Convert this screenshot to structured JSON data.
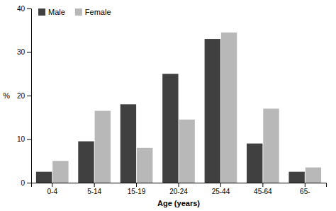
{
  "chart_data": {
    "type": "bar",
    "categories": [
      "0-4",
      "5-14",
      "15-19",
      "20-24",
      "25-44",
      "45-64",
      "65-"
    ],
    "series": [
      {
        "name": "Male",
        "color": "#404040",
        "values": [
          2.5,
          9.5,
          18.0,
          25.0,
          33.0,
          9.0,
          2.5
        ]
      },
      {
        "name": "Female",
        "color": "#b8b8b8",
        "values": [
          5.0,
          16.5,
          8.0,
          14.5,
          34.5,
          17.0,
          3.5
        ]
      }
    ],
    "xlabel": "Age (years)",
    "ylabel": "%",
    "ylim": [
      0,
      40
    ],
    "yticks": [
      0,
      10,
      20,
      30,
      40
    ],
    "grid": false,
    "legend": "upper left"
  }
}
